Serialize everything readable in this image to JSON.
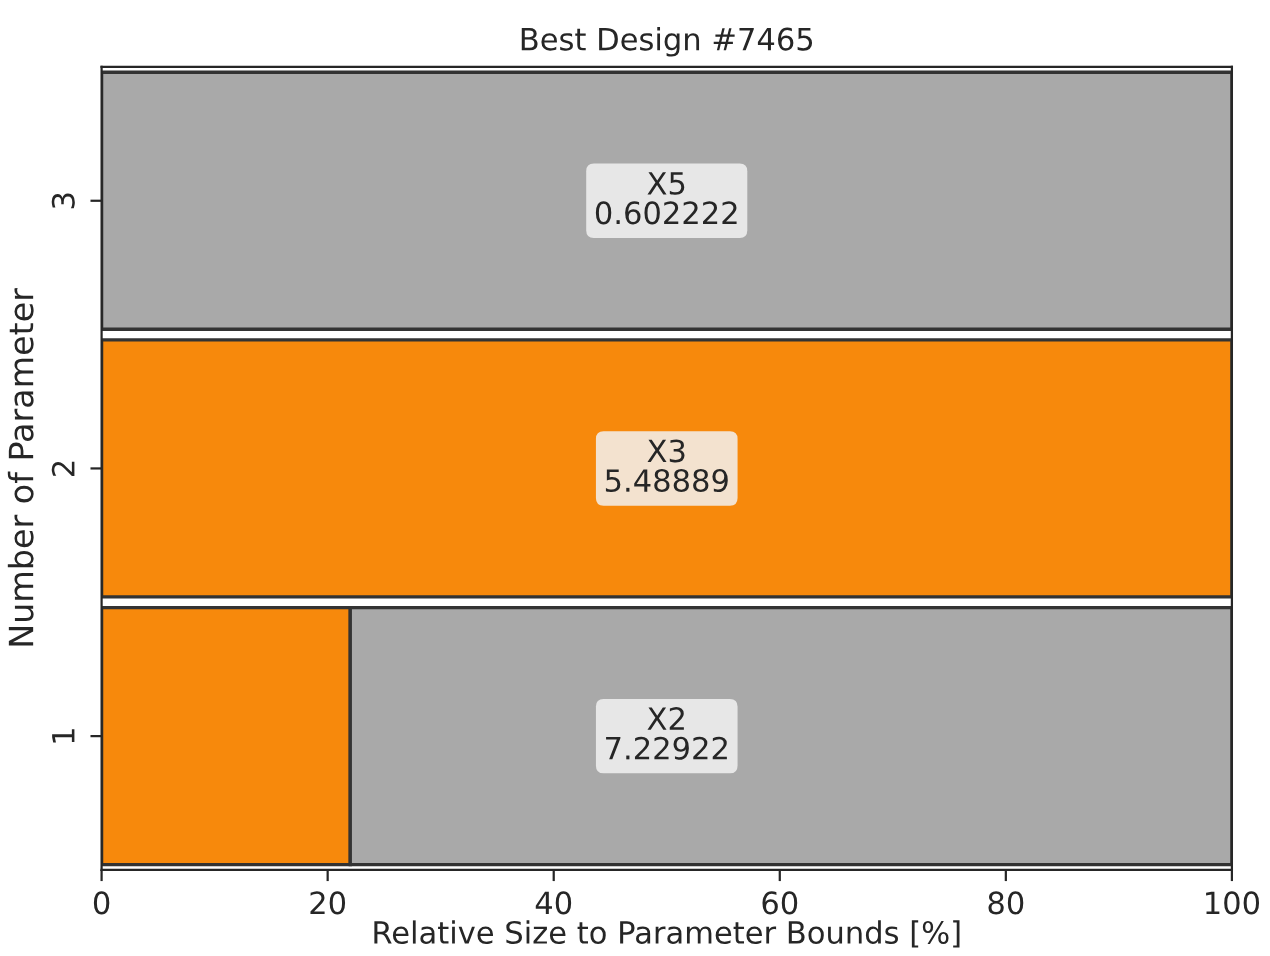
{
  "chart_data": {
    "type": "bar",
    "orientation": "horizontal",
    "stacked": true,
    "title": "Best Design #7465",
    "xlabel": "Relative Size to Parameter Bounds [%]",
    "ylabel": "Number of Parameter",
    "categories": [
      "3",
      "2",
      "1"
    ],
    "series": [
      {
        "color": "#f7890c",
        "values": [
          null,
          100,
          22
        ]
      },
      {
        "color": "#a9a9a9",
        "values": [
          100,
          null,
          78
        ]
      }
    ],
    "xlim": [
      0,
      100
    ],
    "xticks": [
      0,
      20,
      40,
      60,
      80,
      100
    ],
    "grid": false,
    "legend": false,
    "annotations": [
      "X5\n0.602222",
      "X3\n5.48889",
      "X2\n7.22922"
    ]
  }
}
